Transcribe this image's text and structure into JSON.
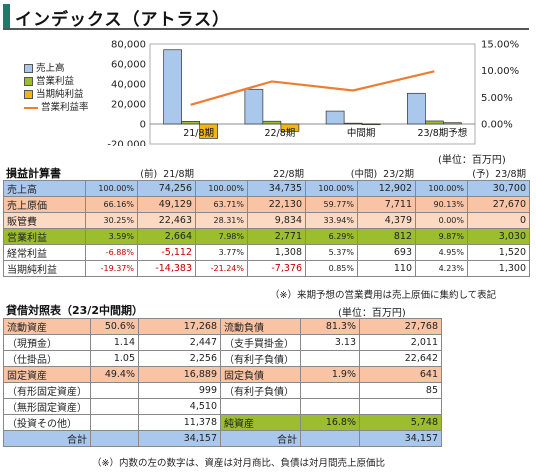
{
  "title": "インデックス（アトラス）",
  "chart_data": {
    "type": "bar",
    "categories": [
      "21/8期",
      "22/8期",
      "中間期",
      "23/8期予想"
    ],
    "series": [
      {
        "name": "売上高",
        "values": [
          74256,
          34735,
          12902,
          30700
        ],
        "color": "#a9c8ec"
      },
      {
        "name": "営業利益",
        "values": [
          2664,
          2771,
          812,
          3030
        ],
        "color": "#9bbd2e"
      },
      {
        "name": "当期純利益",
        "values": [
          -14383,
          -7376,
          110,
          1300
        ],
        "color": "#f2b418"
      },
      {
        "name": "営業利益率",
        "values": [
          3.59,
          7.98,
          6.29,
          9.87
        ],
        "type": "line",
        "color": "#ed7d31"
      }
    ],
    "y_left_ticks": [
      "80,000",
      "60,000",
      "40,000",
      "20,000",
      "0",
      "-20,000"
    ],
    "y_right_ticks": [
      "15.00%",
      "10.00%",
      "5.00%",
      "0.00%"
    ],
    "ylim": [
      -20000,
      80000
    ],
    "y2lim": [
      0,
      15
    ],
    "legend_position": "left"
  },
  "unit_label": "(単位：百万円)",
  "pl": {
    "heading": "損益計算書",
    "periods": [
      {
        "tag": "(前)",
        "label": "21/8期"
      },
      {
        "tag": "",
        "label": "22/8期"
      },
      {
        "tag": "(中間)",
        "label": "23/2期"
      },
      {
        "tag": "(予)",
        "label": "23/8期"
      }
    ],
    "rows": [
      {
        "label": "売上高",
        "cells": [
          [
            "100.00%",
            "74,256"
          ],
          [
            "100.00%",
            "34,735"
          ],
          [
            "100.00%",
            "12,902"
          ],
          [
            "100.00%",
            "30,700"
          ]
        ]
      },
      {
        "label": "売上原価",
        "cells": [
          [
            "66.16%",
            "49,129"
          ],
          [
            "63.71%",
            "22,130"
          ],
          [
            "59.77%",
            "7,711"
          ],
          [
            "90.13%",
            "27,670"
          ]
        ]
      },
      {
        "label": "販管費",
        "cells": [
          [
            "30.25%",
            "22,463"
          ],
          [
            "28.31%",
            "9,834"
          ],
          [
            "33.94%",
            "4,379"
          ],
          [
            "0.00%",
            "0"
          ]
        ]
      },
      {
        "label": "営業利益",
        "cells": [
          [
            "3.59%",
            "2,664"
          ],
          [
            "7.98%",
            "2,771"
          ],
          [
            "6.29%",
            "812"
          ],
          [
            "9.87%",
            "3,030"
          ]
        ]
      },
      {
        "label": "経常利益",
        "cells": [
          [
            "-6.88%",
            "-5,112"
          ],
          [
            "3.77%",
            "1,308"
          ],
          [
            "5.37%",
            "693"
          ],
          [
            "4.95%",
            "1,520"
          ]
        ]
      },
      {
        "label": "当期純利益",
        "cells": [
          [
            "-19.37%",
            "-14,383"
          ],
          [
            "-21.24%",
            "-7,376"
          ],
          [
            "0.85%",
            "110"
          ],
          [
            "4.23%",
            "1,300"
          ]
        ]
      }
    ],
    "footnote": "（※）来期予想の営業費用は売上原価に集約して表記"
  },
  "bs": {
    "heading": "貸借対照表（23/2中間期）",
    "unit_label": "(単位：百万円)",
    "left": [
      {
        "label": "流動資産",
        "pct": "50.6%",
        "value": "17,268",
        "style": "orange"
      },
      {
        "label": "（現預金）",
        "pct": "1.14",
        "value": "2,447",
        "style": "blank"
      },
      {
        "label": "（仕掛品）",
        "pct": "1.05",
        "value": "2,256",
        "style": "blank"
      },
      {
        "label": "固定資産",
        "pct": "49.4%",
        "value": "16,889",
        "style": "orange"
      },
      {
        "label": "（有形固定資産）",
        "pct": "",
        "value": "999",
        "style": "blank"
      },
      {
        "label": "（無形固定資産）",
        "pct": "",
        "value": "4,510",
        "style": "blank"
      },
      {
        "label": "（投資その他）",
        "pct": "",
        "value": "11,378",
        "style": "blank"
      },
      {
        "label": "合計",
        "pct": "",
        "value": "34,157",
        "style": "total"
      }
    ],
    "right": [
      {
        "label": "流動負債",
        "pct": "81.3%",
        "value": "27,768",
        "style": "orange"
      },
      {
        "label": "（支手買掛金）",
        "pct": "3.13",
        "value": "2,011",
        "style": "blank"
      },
      {
        "label": "（有利子負債）",
        "pct": "",
        "value": "22,642",
        "style": "blank"
      },
      {
        "label": "固定負債",
        "pct": "1.9%",
        "value": "641",
        "style": "orange"
      },
      {
        "label": "（有利子負債）",
        "pct": "",
        "value": "85",
        "style": "blank"
      },
      {
        "label": "",
        "pct": "",
        "value": "",
        "style": "blank"
      },
      {
        "label": "純資産",
        "pct": "16.8%",
        "value": "5,748",
        "style": "green"
      },
      {
        "label": "合計",
        "pct": "",
        "value": "34,157",
        "style": "total"
      }
    ],
    "footnote": "（※）内数の左の数字は、資産は対月商比、負債は対月間売上原価比"
  }
}
